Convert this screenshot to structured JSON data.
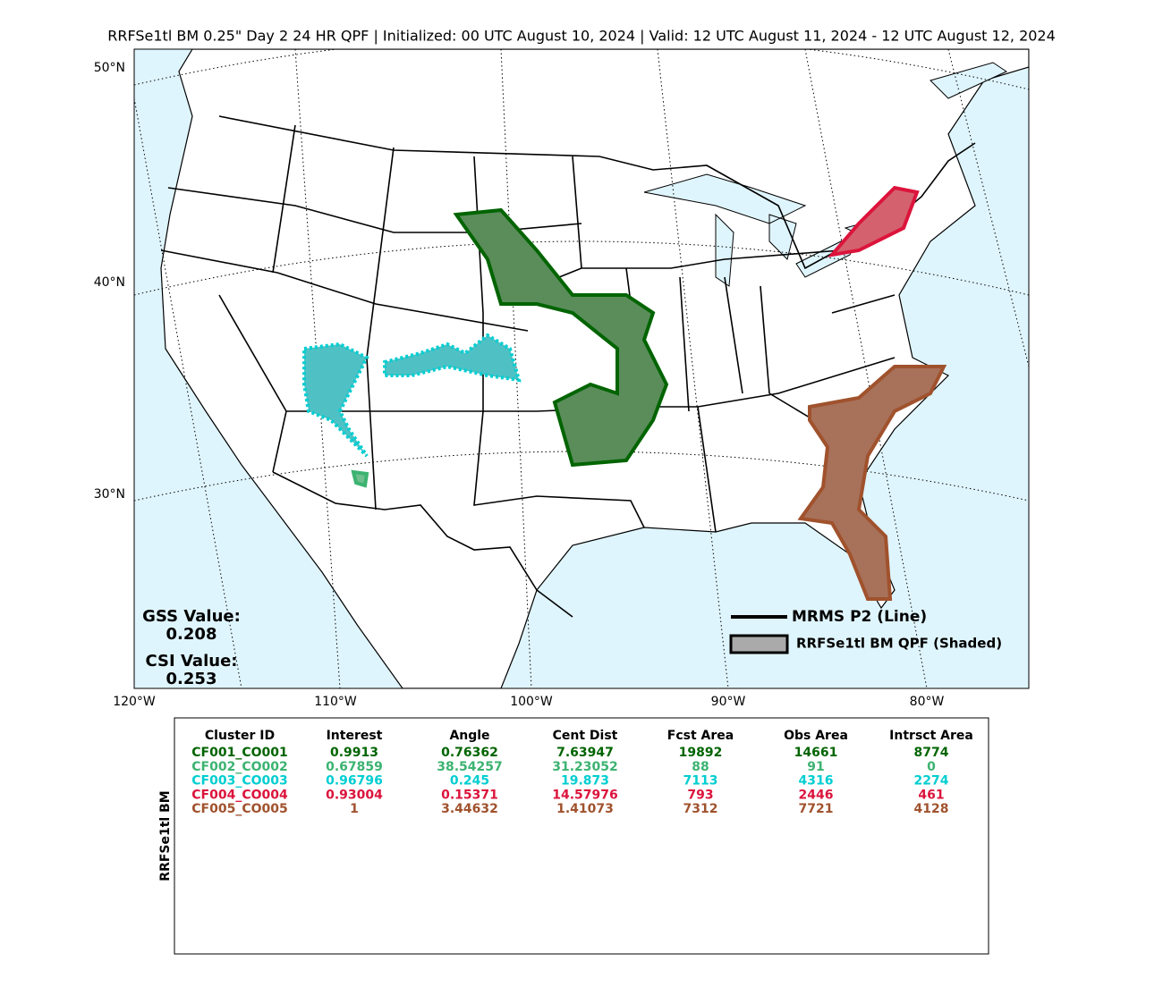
{
  "title": "RRFSe1tl BM 0.25\" Day 2 24 HR QPF | Initialized: 00 UTC August 10, 2024 | Valid: 12 UTC August 11, 2024 - 12 UTC August 12, 2024",
  "map": {
    "lat_labels": [
      "50°N",
      "40°N",
      "30°N"
    ],
    "lon_labels": [
      "120°W",
      "110°W",
      "100°W",
      "90°W",
      "80°W"
    ],
    "gss": {
      "label": "GSS Value:",
      "value": "0.208"
    },
    "csi": {
      "label": "CSI Value:",
      "value": "0.253"
    },
    "legend": [
      "MRMS P2 (Line)",
      "RRFSe1tl BM QPF (Shaded)"
    ]
  },
  "table": {
    "side_label": "RRFSe1tl BM",
    "columns": [
      "Cluster ID",
      "Interest",
      "Angle",
      "Cent Dist",
      "Fcst Area",
      "Obs Area",
      "Intrsct Area"
    ],
    "row_colors": [
      "#006400",
      "#3cb371",
      "#00ced1",
      "#dc143c",
      "#a0522d"
    ],
    "rows": [
      [
        "CF001_CO001",
        "0.9913",
        "0.76362",
        "7.63947",
        "19892",
        "14661",
        "8774"
      ],
      [
        "CF002_CO002",
        "0.67859",
        "38.54257",
        "31.23052",
        "88",
        "91",
        "0"
      ],
      [
        "CF003_CO003",
        "0.96796",
        "0.245",
        "19.873",
        "7113",
        "4316",
        "2274"
      ],
      [
        "CF004_CO004",
        "0.93004",
        "0.15371",
        "14.57976",
        "793",
        "2446",
        "461"
      ],
      [
        "CF005_CO005",
        "1",
        "3.44632",
        "1.41073",
        "7312",
        "7721",
        "4128"
      ]
    ]
  }
}
